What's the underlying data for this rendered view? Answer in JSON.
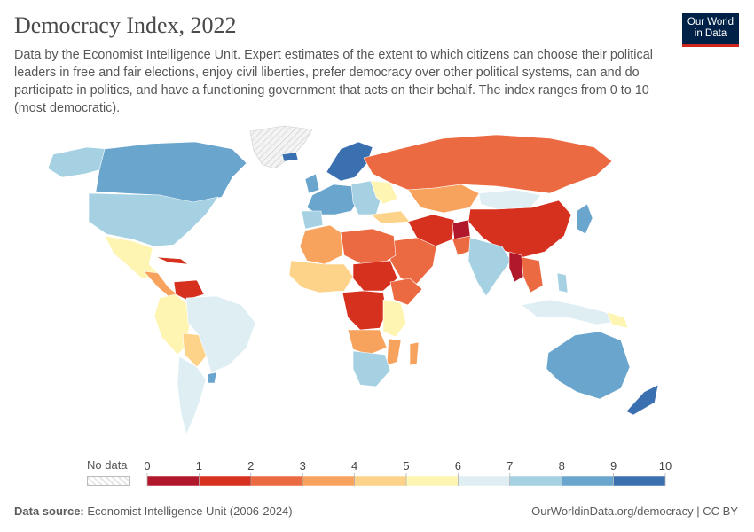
{
  "header": {
    "title": "Democracy Index, 2022",
    "subtitle": "Data by the Economist Intelligence Unit. Expert estimates of the extent to which citizens can choose their political leaders in free and fair elections, enjoy civil liberties, prefer democracy over other political systems, can and do participate in politics, and have a functioning government that acts on their behalf. The index ranges from 0 to 10 (most democratic).",
    "logo_line1": "Our World",
    "logo_line2": "in Data"
  },
  "legend": {
    "no_data_label": "No data",
    "ticks": [
      "0",
      "1",
      "2",
      "3",
      "4",
      "5",
      "6",
      "7",
      "8",
      "9",
      "10"
    ],
    "bin_colors": [
      "#b2182b",
      "#d6301f",
      "#ec6a42",
      "#f7a35e",
      "#fdd38a",
      "#fff5b2",
      "#deeef3",
      "#a6d1e3",
      "#6aa5cd",
      "#3a6fb0"
    ]
  },
  "footer": {
    "source_label": "Data source:",
    "source_text": "Economist Intelligence Unit (2006-2024)",
    "url_text": "OurWorldinData.org/democracy | CC BY"
  },
  "colors": {
    "ocean": "#ffffff",
    "nodata": "#eeeeee",
    "border": "#ffffff"
  }
}
